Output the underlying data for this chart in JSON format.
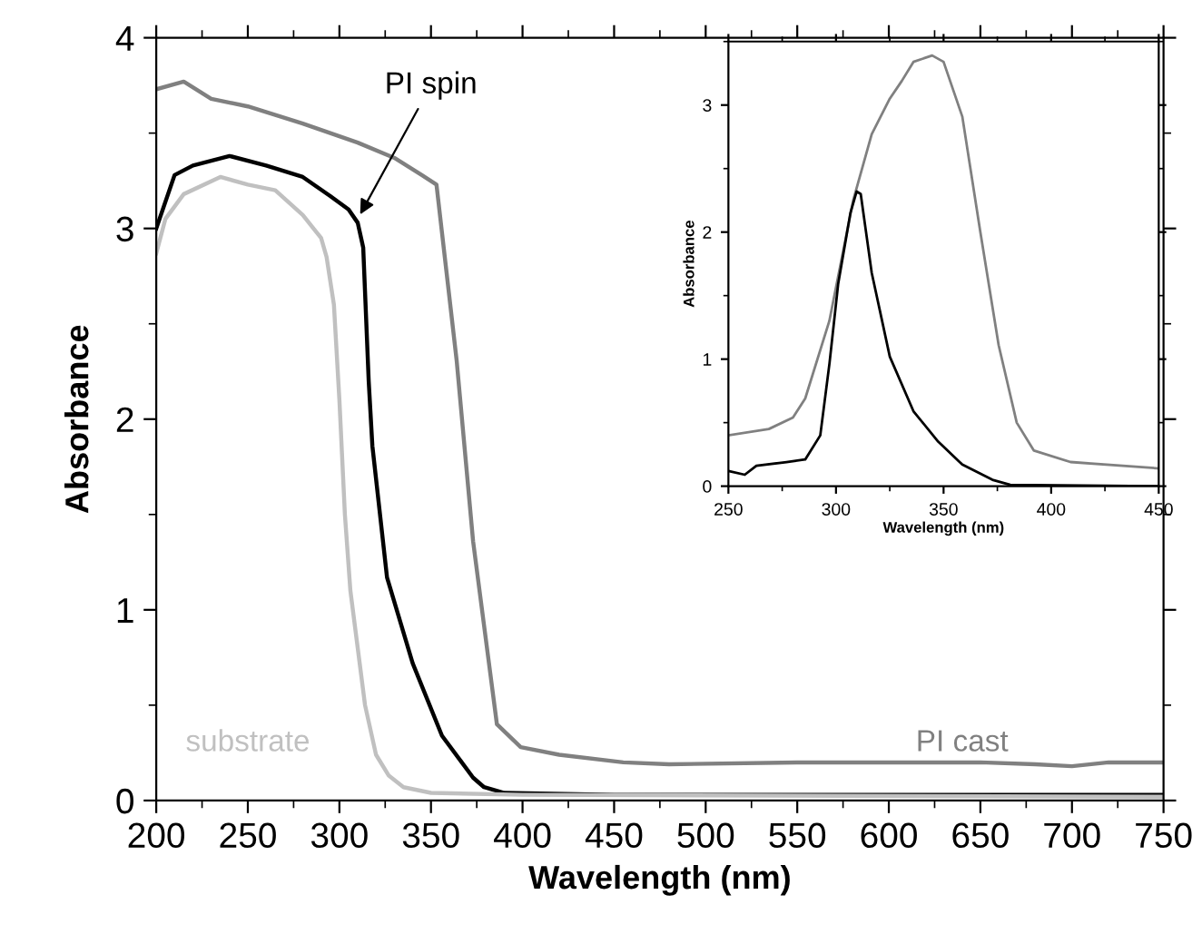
{
  "chart_data": [
    {
      "type": "line",
      "xlabel": "Wavelength (nm)",
      "ylabel": "Absorbance",
      "xlim": [
        200,
        750
      ],
      "ylim": [
        0,
        4
      ],
      "xticks": [
        200,
        250,
        300,
        350,
        400,
        450,
        500,
        550,
        600,
        650,
        700,
        750
      ],
      "yticks": [
        0,
        1,
        2,
        3,
        4
      ],
      "series": [
        {
          "name": "PI cast",
          "color": "#808080",
          "x": [
            200,
            215,
            230,
            250,
            280,
            310,
            330,
            345,
            353,
            364,
            373,
            386,
            399,
            420,
            455,
            480,
            550,
            650,
            680,
            700,
            720,
            750
          ],
          "values": [
            3.73,
            3.77,
            3.68,
            3.64,
            3.55,
            3.45,
            3.37,
            3.28,
            3.23,
            2.31,
            1.36,
            0.4,
            0.28,
            0.24,
            0.2,
            0.19,
            0.2,
            0.2,
            0.19,
            0.18,
            0.2,
            0.2
          ]
        },
        {
          "name": "PI spin",
          "color": "#000000",
          "x": [
            200,
            210,
            220,
            240,
            260,
            280,
            295,
            305,
            310,
            313,
            316,
            318,
            326,
            340,
            356,
            373,
            379,
            390,
            450,
            750
          ],
          "values": [
            3.0,
            3.28,
            3.33,
            3.38,
            3.33,
            3.27,
            3.17,
            3.1,
            3.03,
            2.9,
            2.2,
            1.86,
            1.17,
            0.72,
            0.34,
            0.12,
            0.07,
            0.04,
            0.03,
            0.03
          ]
        },
        {
          "name": "substrate",
          "color": "#c0c0c0",
          "x": [
            200,
            205,
            215,
            235,
            250,
            265,
            280,
            290,
            293,
            297,
            300,
            303,
            306,
            310,
            314,
            320,
            327,
            335,
            350,
            400,
            750
          ],
          "values": [
            2.87,
            3.05,
            3.18,
            3.27,
            3.23,
            3.2,
            3.07,
            2.95,
            2.85,
            2.6,
            2.1,
            1.5,
            1.1,
            0.8,
            0.5,
            0.24,
            0.13,
            0.07,
            0.04,
            0.03,
            0.02
          ]
        }
      ]
    },
    {
      "type": "line",
      "xlabel": "Wavelength (nm)",
      "ylabel": "Absorbance",
      "xlim": [
        250,
        450
      ],
      "ylim": [
        0,
        3.5
      ],
      "xticks": [
        250,
        300,
        350,
        400,
        450
      ],
      "yticks": [
        0,
        1,
        2,
        3
      ],
      "series": [
        {
          "color": "#808080",
          "x": [
            250,
            268.8,
            280,
            285.7,
            296.9,
            308,
            316.6,
            325,
            330.6,
            336,
            344.7,
            350,
            358.7,
            367,
            375.6,
            384,
            392,
            409,
            450
          ],
          "values": [
            0.4,
            0.45,
            0.54,
            0.69,
            1.3,
            2.25,
            2.77,
            3.05,
            3.19,
            3.34,
            3.39,
            3.34,
            2.91,
            2.01,
            1.11,
            0.5,
            0.28,
            0.19,
            0.14
          ]
        },
        {
          "color": "#000000",
          "x": [
            250,
            257.6,
            263,
            277,
            285.7,
            292.7,
            297,
            301,
            306.7,
            309.6,
            311.5,
            316.6,
            320.8,
            325,
            336,
            347.5,
            358.7,
            372.7,
            381,
            450
          ],
          "values": [
            0.12,
            0.09,
            0.16,
            0.19,
            0.21,
            0.4,
            0.97,
            1.59,
            2.15,
            2.32,
            2.3,
            1.68,
            1.35,
            1.02,
            0.59,
            0.35,
            0.17,
            0.05,
            0.01,
            0
          ]
        }
      ]
    }
  ]
}
